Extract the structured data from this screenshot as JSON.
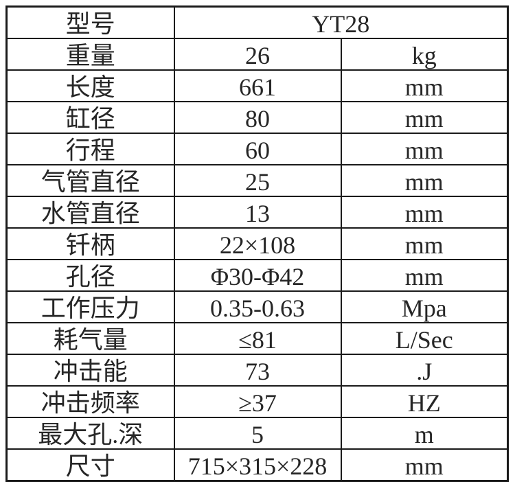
{
  "table": {
    "title_semantic": "YT28 rock drill specification table",
    "colors": {
      "border": "#1a1a1a",
      "text": "#262626",
      "background": "#ffffff"
    },
    "model_row": {
      "label": "型号",
      "value": "YT28"
    },
    "rows": [
      {
        "label": "重量",
        "value": "26",
        "unit": "kg"
      },
      {
        "label": "长度",
        "value": "661",
        "unit": "mm"
      },
      {
        "label": "缸径",
        "value": "80",
        "unit": "mm"
      },
      {
        "label": "行程",
        "value": "60",
        "unit": "mm"
      },
      {
        "label": "气管直径",
        "value": "25",
        "unit": "mm"
      },
      {
        "label": "水管直径",
        "value": "13",
        "unit": "mm"
      },
      {
        "label": "钎柄",
        "value": "22×108",
        "unit": "mm"
      },
      {
        "label": "孔径",
        "value": "Φ30-Φ42",
        "unit": "mm"
      },
      {
        "label": "工作压力",
        "value": "0.35-0.63",
        "unit": "Mpa"
      },
      {
        "label": "耗气量",
        "value": "≤81",
        "unit": "L/Sec"
      },
      {
        "label": "冲击能",
        "value": "73",
        "unit": ".J"
      },
      {
        "label": "冲击频率",
        "value": "≥37",
        "unit": "HZ"
      },
      {
        "label": "最大孔.深",
        "value": "5",
        "unit": "m"
      },
      {
        "label": "尺寸",
        "value": "715×315×228",
        "unit": "mm"
      }
    ]
  }
}
